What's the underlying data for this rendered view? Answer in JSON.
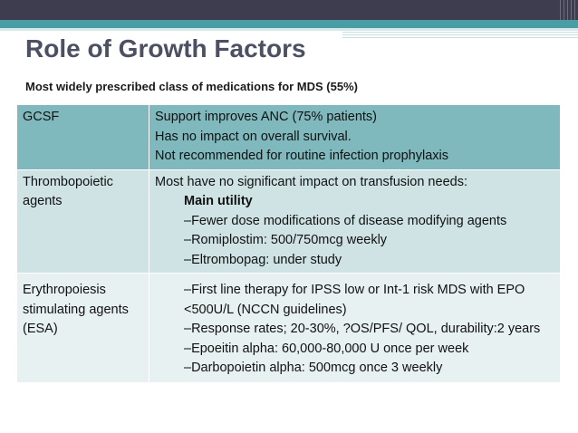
{
  "title": "Role of Growth Factors",
  "subtitle": "Most widely prescribed class of medications for MDS (55%)",
  "rows": [
    {
      "label": "GCSF",
      "lines": [
        "Support improves ANC (75% patients)",
        "Has  no impact on overall survival.",
        "Not recommended for routine infection prophylaxis"
      ]
    },
    {
      "label": "Thrombopoietic agents",
      "intro": "Most have no significant impact on transfusion needs:",
      "heading": "Main utility",
      "bullets": [
        "–Fewer dose modifications of disease modifying agents",
        "–Romiplostim: 500/750mcg weekly",
        "–Eltrombopag: under study"
      ]
    },
    {
      "label": "Erythropoiesis stimulating agents (ESA)",
      "bullets": [
        "–First line therapy for IPSS low or Int-1 risk MDS with EPO <500U/L (NCCN guidelines)",
        "–Response rates; 20-30%, ?OS/PFS/ QOL, durability:2 years",
        "–Epoeitin alpha: 60,000-80,000 U once per week",
        "–Darbopoietin alpha: 500mcg once 3 weekly"
      ]
    }
  ]
}
